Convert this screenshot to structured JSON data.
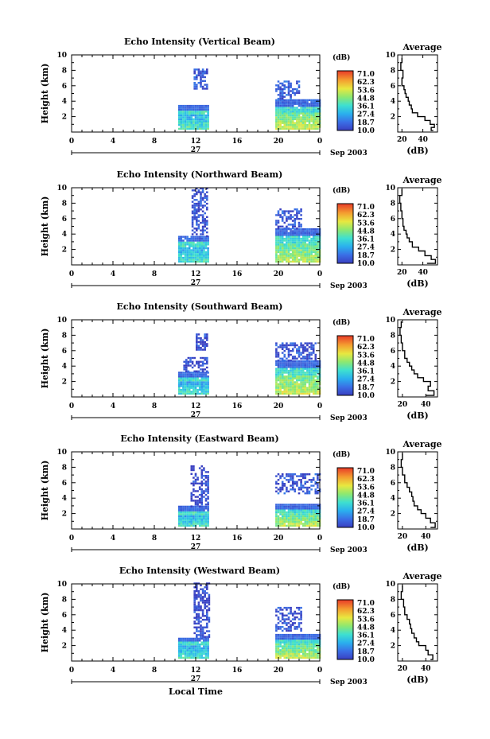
{
  "chart_data": [
    {
      "type": "heatmap",
      "title": "Echo Intensity (Vertical Beam)",
      "ylabel": "Height (km)",
      "x_ticks": [
        "0",
        "4",
        "8",
        "12",
        "16",
        "20",
        "0"
      ],
      "y_ticks": [
        "2",
        "4",
        "6",
        "8",
        "10"
      ],
      "xlim": [
        0,
        24
      ],
      "ylim": [
        0,
        10
      ],
      "date_label": "27",
      "date_suffix": "Sep 2003",
      "colorbar": {
        "unit": "(dB)",
        "labels": [
          "71.0",
          "62.3",
          "53.6",
          "44.8",
          "36.1",
          "27.4",
          "18.7",
          "10.0"
        ]
      },
      "echo_regions": [
        {
          "t": [
            10.3,
            13.2
          ],
          "h": [
            0.3,
            3.5
          ],
          "level": 30
        },
        {
          "t": [
            11.8,
            13.1
          ],
          "h": [
            5.5,
            8.2
          ],
          "level": 14
        },
        {
          "t": [
            19.7,
            24.0
          ],
          "h": [
            0.3,
            4.2
          ],
          "level": 42
        },
        {
          "t": [
            19.7,
            22.0
          ],
          "h": [
            4.2,
            6.5
          ],
          "level": 15
        }
      ],
      "average_profile": {
        "title": "Average",
        "xlabel": "(dB)",
        "x_ticks": [
          "20",
          "40"
        ],
        "y_ticks": [
          "2",
          "4",
          "6",
          "8",
          "10"
        ],
        "xlim": [
          16,
          54
        ],
        "ylim": [
          0,
          10
        ],
        "height": [
          0.2,
          0.6,
          1.0,
          1.5,
          2.0,
          2.5,
          3.0,
          3.5,
          4.0,
          4.5,
          5.0,
          5.5,
          6.0,
          7.0,
          8.0,
          9.0,
          9.6
        ],
        "db": [
          50,
          48,
          51,
          47,
          42,
          35,
          30,
          29,
          27,
          26,
          24,
          23,
          22,
          20,
          21,
          19,
          20
        ]
      }
    },
    {
      "type": "heatmap",
      "title": "Echo Intensity (Northward Beam)",
      "ylabel": "Height (km)",
      "x_ticks": [
        "0",
        "4",
        "8",
        "12",
        "16",
        "20",
        "0"
      ],
      "y_ticks": [
        "2",
        "4",
        "6",
        "8",
        "10"
      ],
      "xlim": [
        0,
        24
      ],
      "ylim": [
        0,
        10
      ],
      "date_label": "27",
      "date_suffix": "Sep 2003",
      "colorbar": {
        "unit": "(dB)",
        "labels": [
          "71.0",
          "62.3",
          "53.6",
          "44.8",
          "36.1",
          "27.4",
          "18.7",
          "10.0"
        ]
      },
      "echo_regions": [
        {
          "t": [
            10.3,
            13.2
          ],
          "h": [
            0.3,
            3.6
          ],
          "level": 28
        },
        {
          "t": [
            11.6,
            13.0
          ],
          "h": [
            3.6,
            10.0
          ],
          "level": 13
        },
        {
          "t": [
            19.7,
            24.0
          ],
          "h": [
            0.3,
            4.6
          ],
          "level": 40
        },
        {
          "t": [
            19.7,
            22.2
          ],
          "h": [
            4.6,
            7.2
          ],
          "level": 14
        }
      ],
      "average_profile": {
        "title": "Average",
        "xlabel": "(dB)",
        "x_ticks": [
          "20",
          "40"
        ],
        "y_ticks": [
          "2",
          "4",
          "6",
          "8",
          "10"
        ],
        "xlim": [
          16,
          54
        ],
        "ylim": [
          0,
          10
        ],
        "height": [
          0.2,
          0.7,
          1.2,
          1.8,
          2.3,
          3.0,
          3.5,
          4.0,
          4.5,
          5.0,
          6.0,
          7.0,
          8.0,
          9.0,
          9.8
        ],
        "db": [
          44,
          52,
          48,
          42,
          36,
          30,
          27,
          25,
          24,
          22,
          21,
          20,
          19,
          18,
          20
        ]
      }
    },
    {
      "type": "heatmap",
      "title": "Echo Intensity (Southward Beam)",
      "ylabel": "Height (km)",
      "x_ticks": [
        "0",
        "4",
        "8",
        "12",
        "16",
        "20",
        "0"
      ],
      "y_ticks": [
        "2",
        "4",
        "6",
        "8",
        "10"
      ],
      "xlim": [
        0,
        24
      ],
      "ylim": [
        0,
        10
      ],
      "date_label": "27",
      "date_suffix": "Sep 2003",
      "colorbar": {
        "unit": "(dB)",
        "labels": [
          "71.0",
          "62.3",
          "53.6",
          "44.8",
          "36.1",
          "27.4",
          "18.7",
          "10.0"
        ]
      },
      "echo_regions": [
        {
          "t": [
            10.3,
            13.2
          ],
          "h": [
            0.3,
            3.2
          ],
          "level": 28
        },
        {
          "t": [
            10.8,
            13.0
          ],
          "h": [
            3.2,
            5.0
          ],
          "level": 12
        },
        {
          "t": [
            12.0,
            13.0
          ],
          "h": [
            6.0,
            8.0
          ],
          "level": 12
        },
        {
          "t": [
            19.7,
            24.0
          ],
          "h": [
            0.3,
            4.6
          ],
          "level": 42
        },
        {
          "t": [
            19.7,
            23.5
          ],
          "h": [
            4.6,
            7.0
          ],
          "level": 14
        }
      ],
      "average_profile": {
        "title": "Average",
        "xlabel": "(dB)",
        "x_ticks": [
          "20",
          "40"
        ],
        "y_ticks": [
          "2",
          "4",
          "6",
          "8",
          "10"
        ],
        "xlim": [
          16,
          50
        ],
        "ylim": [
          0,
          10
        ],
        "height": [
          0.2,
          0.8,
          1.4,
          2.0,
          2.5,
          3.0,
          3.5,
          4.0,
          4.5,
          5.0,
          6.0,
          7.0,
          8.0,
          9.0,
          9.8
        ],
        "db": [
          40,
          47,
          42,
          44,
          38,
          33,
          30,
          28,
          26,
          24,
          22,
          20,
          19,
          18,
          19
        ]
      }
    },
    {
      "type": "heatmap",
      "title": "Echo Intensity (Eastward Beam)",
      "ylabel": "Height (km)",
      "x_ticks": [
        "0",
        "4",
        "8",
        "12",
        "16",
        "20",
        "0"
      ],
      "y_ticks": [
        "2",
        "4",
        "6",
        "8",
        "10"
      ],
      "xlim": [
        0,
        24
      ],
      "ylim": [
        0,
        10
      ],
      "date_label": "27",
      "date_suffix": "Sep 2003",
      "colorbar": {
        "unit": "(dB)",
        "labels": [
          "71.0",
          "62.3",
          "53.6",
          "44.8",
          "36.1",
          "27.4",
          "18.7",
          "10.0"
        ]
      },
      "echo_regions": [
        {
          "t": [
            10.3,
            13.2
          ],
          "h": [
            0.3,
            2.8
          ],
          "level": 28
        },
        {
          "t": [
            11.5,
            13.2
          ],
          "h": [
            2.8,
            8.0
          ],
          "level": 12
        },
        {
          "t": [
            19.7,
            24.0
          ],
          "h": [
            0.3,
            3.2
          ],
          "level": 40
        },
        {
          "t": [
            19.7,
            24.0
          ],
          "h": [
            4.5,
            7.0
          ],
          "level": 14
        }
      ],
      "average_profile": {
        "title": "Average",
        "xlabel": "(dB)",
        "x_ticks": [
          "20",
          "40"
        ],
        "y_ticks": [
          "2",
          "4",
          "6",
          "8",
          "10"
        ],
        "xlim": [
          16,
          50
        ],
        "ylim": [
          0,
          10
        ],
        "height": [
          0.2,
          0.8,
          1.4,
          2.0,
          2.5,
          3.0,
          3.6,
          4.2,
          4.8,
          5.4,
          6.0,
          7.0,
          8.0,
          9.0,
          9.8
        ],
        "db": [
          44,
          48,
          44,
          40,
          36,
          33,
          30,
          29,
          28,
          26,
          24,
          22,
          20,
          19,
          20
        ]
      }
    },
    {
      "type": "heatmap",
      "title": "Echo Intensity (Westward Beam)",
      "ylabel": "Height (km)",
      "x_ticks": [
        "0",
        "4",
        "8",
        "12",
        "16",
        "20",
        "0"
      ],
      "y_ticks": [
        "2",
        "4",
        "6",
        "8",
        "10"
      ],
      "xlim": [
        0,
        24
      ],
      "ylim": [
        0,
        10
      ],
      "date_label": "27",
      "date_suffix": "Sep 2003",
      "xlabel": "Local Time",
      "colorbar": {
        "unit": "(dB)",
        "labels": [
          "71.0",
          "62.3",
          "53.6",
          "44.8",
          "36.1",
          "27.4",
          "18.7",
          "10.0"
        ]
      },
      "echo_regions": [
        {
          "t": [
            10.3,
            13.2
          ],
          "h": [
            0.3,
            3.0
          ],
          "level": 28
        },
        {
          "t": [
            11.8,
            13.2
          ],
          "h": [
            3.0,
            10.0
          ],
          "level": 12
        },
        {
          "t": [
            19.7,
            24.0
          ],
          "h": [
            0.3,
            3.5
          ],
          "level": 40
        },
        {
          "t": [
            19.7,
            22.2
          ],
          "h": [
            3.8,
            7.0
          ],
          "level": 14
        }
      ],
      "average_profile": {
        "title": "Average",
        "xlabel": "(dB)",
        "x_ticks": [
          "20",
          "40"
        ],
        "y_ticks": [
          "2",
          "4",
          "6",
          "8",
          "10"
        ],
        "xlim": [
          16,
          50
        ],
        "ylim": [
          0,
          10
        ],
        "height": [
          0.2,
          0.8,
          1.4,
          2.0,
          2.5,
          3.0,
          3.6,
          4.2,
          4.8,
          5.4,
          6.0,
          7.0,
          8.0,
          9.0,
          9.8
        ],
        "db": [
          44,
          46,
          42,
          40,
          34,
          32,
          30,
          28,
          27,
          26,
          24,
          22,
          21,
          19,
          20
        ]
      }
    }
  ]
}
